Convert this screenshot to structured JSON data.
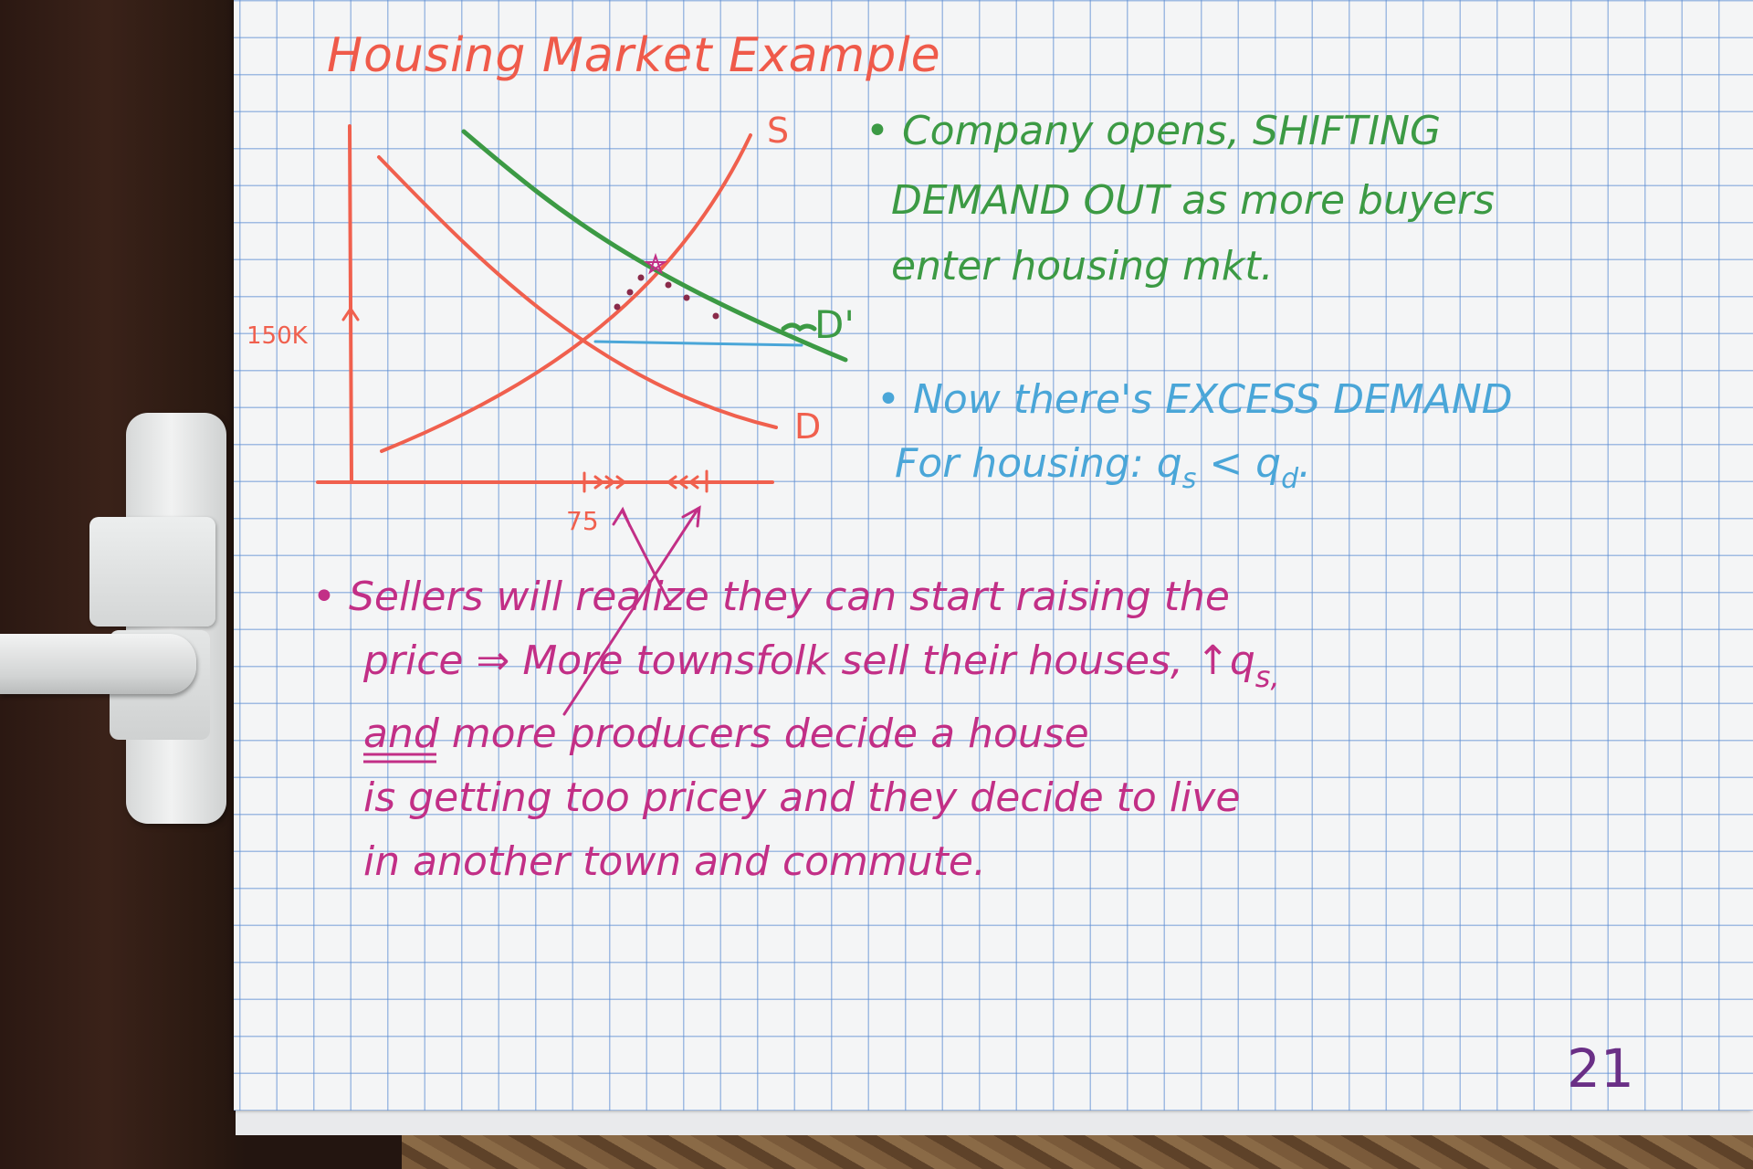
{
  "page": {
    "title": "Housing Market Example",
    "page_number": "21"
  },
  "graph": {
    "label_supply": "S",
    "label_demand": "D",
    "label_demand_shifted": "D'",
    "price_label": "150K",
    "quantity_label": "75"
  },
  "notes": {
    "green": [
      "• Company opens, SHIFTING",
      "DEMAND OUT as more buyers",
      "enter housing mkt."
    ],
    "blue": [
      "• Now there's EXCESS DEMAND",
      "For housing: q",
      "s",
      " < q",
      "d",
      "."
    ],
    "magenta": [
      "• Sellers will realize they can start raising the",
      "price ⇒ More townsfolk sell their houses, ↑q",
      "and more producers decide a house",
      "is getting too pricey and they decide to live",
      "in another town and commute."
    ],
    "magenta_subscript": "s,"
  },
  "colors": {
    "title": "#ef5a4a",
    "graph": "#f0604e",
    "green": "#3c9a44",
    "blue": "#4aa6d8",
    "magenta": "#c22f86",
    "page_number": "#6a2f86"
  }
}
